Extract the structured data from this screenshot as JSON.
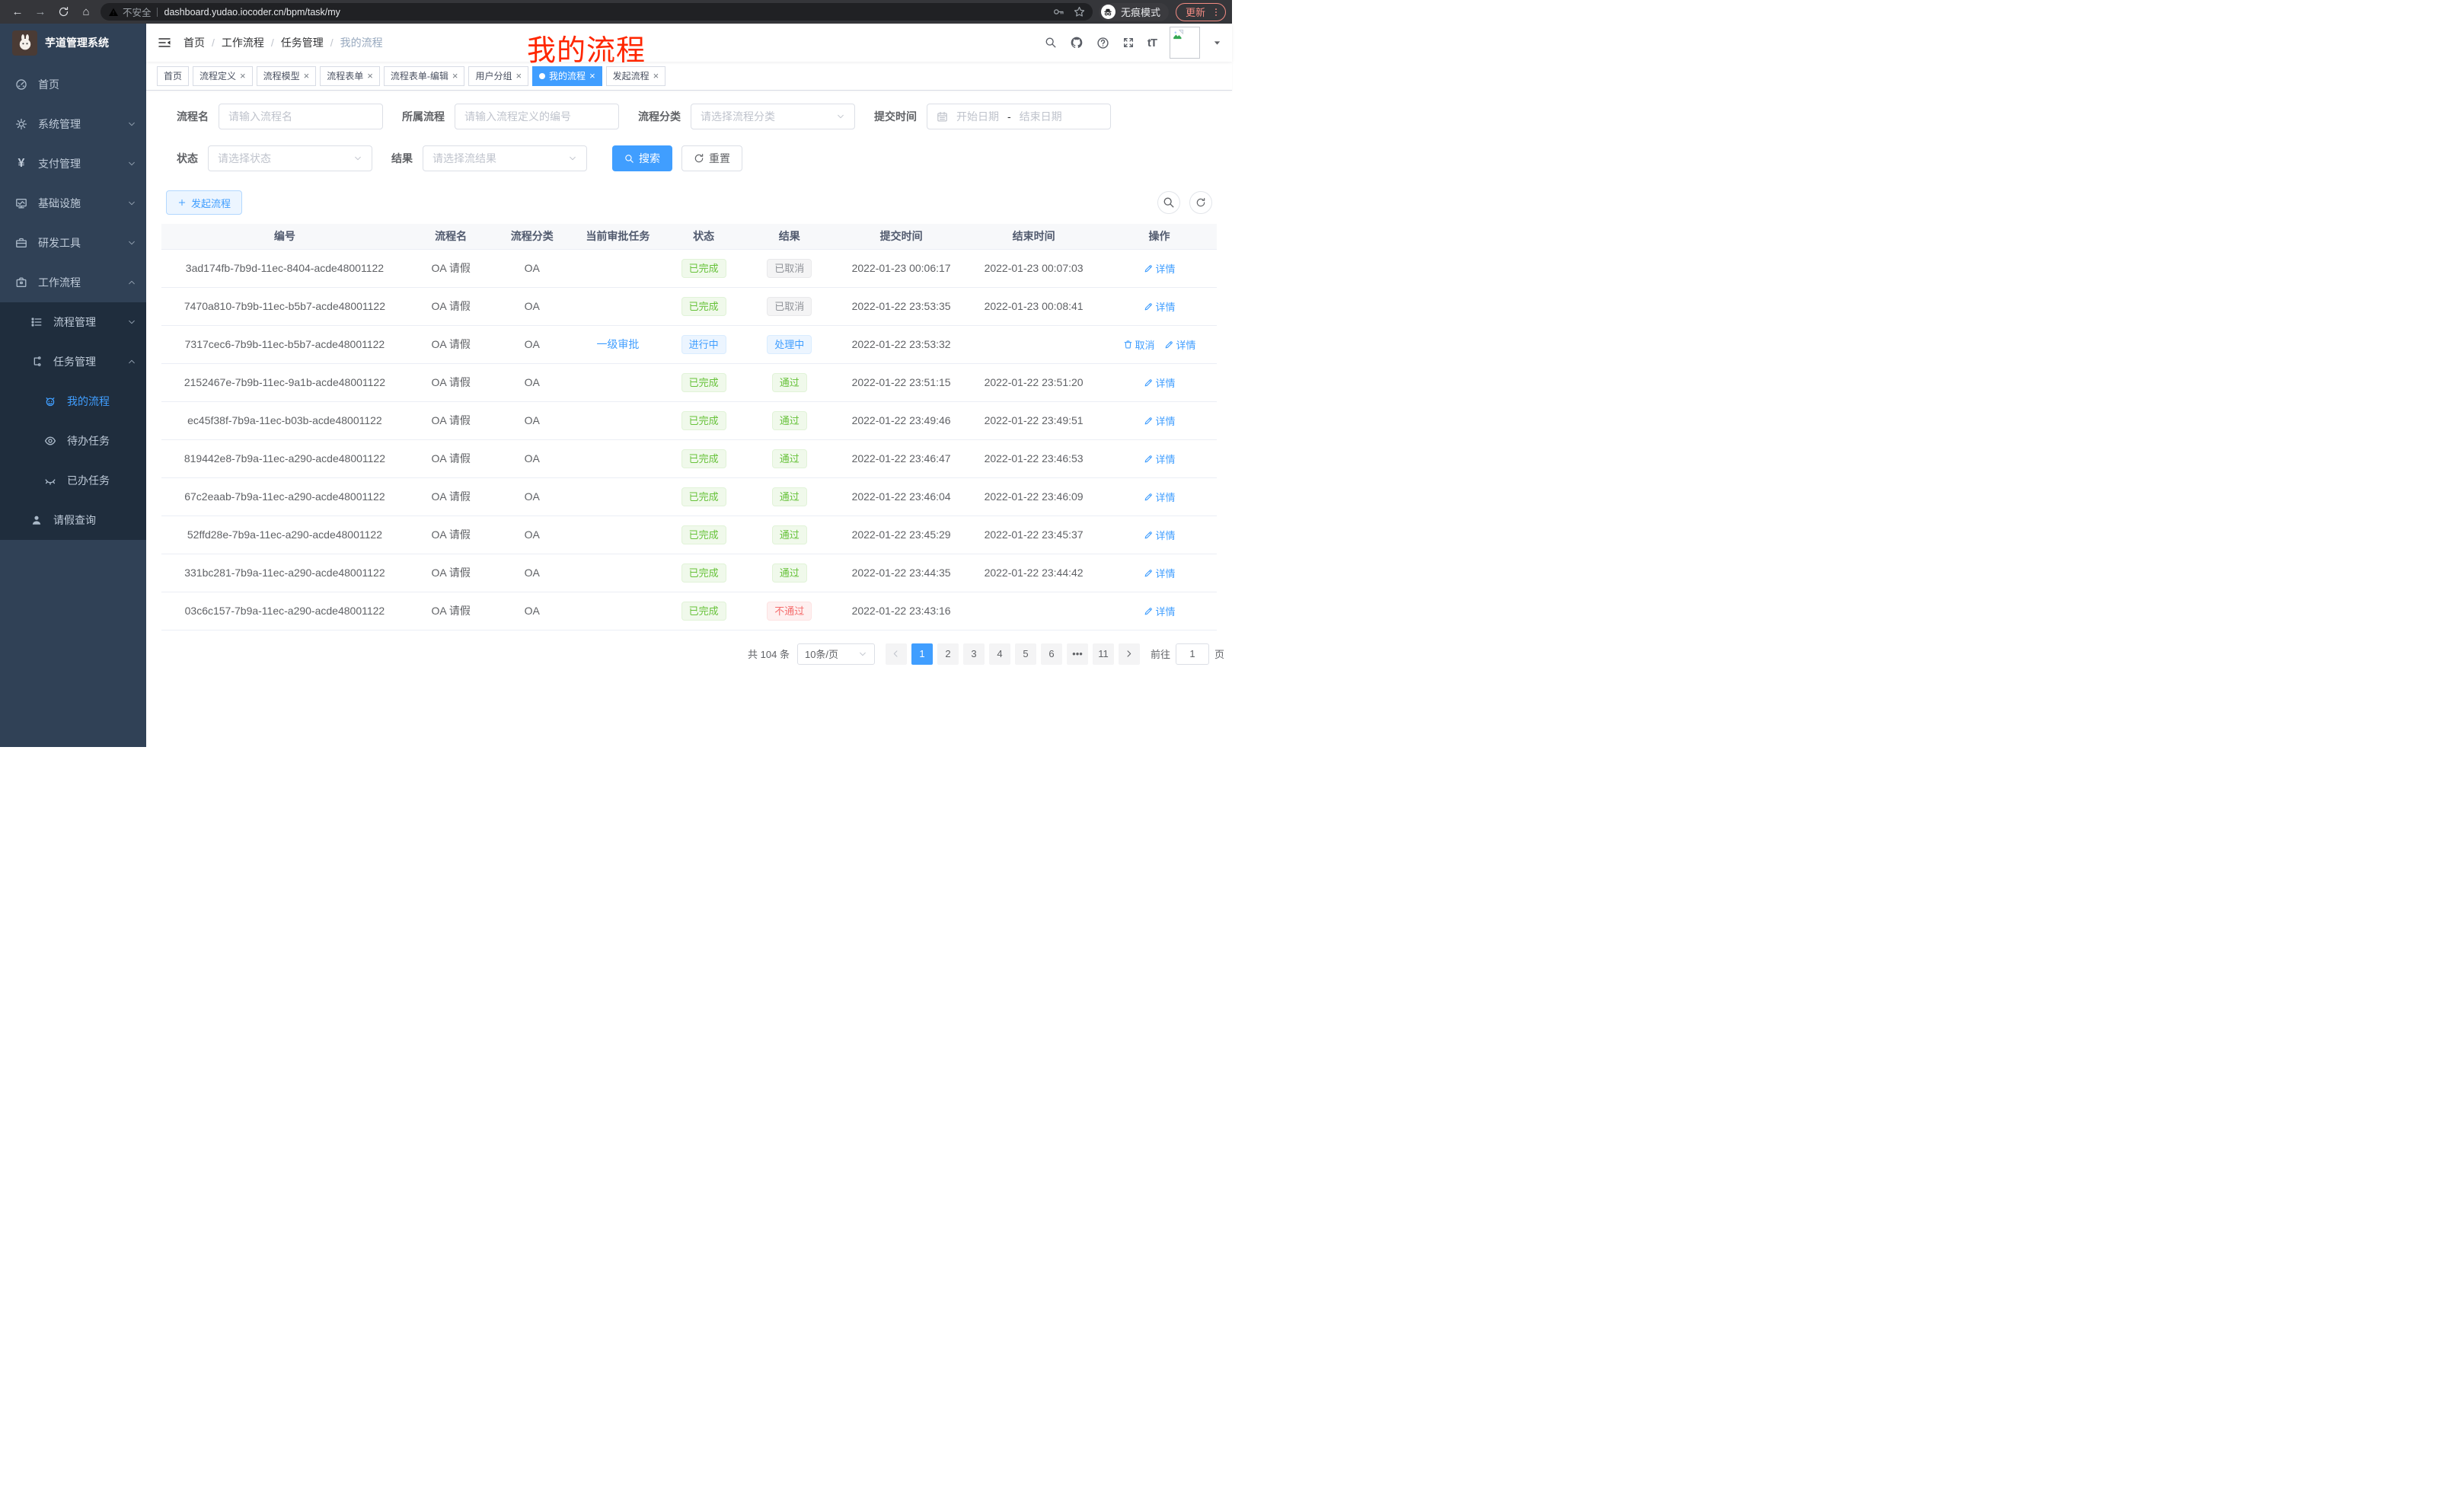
{
  "browser": {
    "security_label": "不安全",
    "url": "dashboard.yudao.iocoder.cn/bpm/task/my",
    "incognito_label": "无痕模式",
    "update_label": "更新"
  },
  "sidebar": {
    "title": "芋道管理系统",
    "items": [
      {
        "key": "home",
        "label": "首页",
        "icon": "dashboard-icon",
        "level": 1,
        "chevron": "",
        "active": false,
        "dark": false
      },
      {
        "key": "system",
        "label": "系统管理",
        "icon": "gear-icon",
        "level": 1,
        "chevron": "down",
        "active": false,
        "dark": false
      },
      {
        "key": "payment",
        "label": "支付管理",
        "icon": "yen-icon",
        "level": 1,
        "chevron": "down",
        "active": false,
        "dark": false
      },
      {
        "key": "infra",
        "label": "基础设施",
        "icon": "monitor-icon",
        "level": 1,
        "chevron": "down",
        "active": false,
        "dark": false
      },
      {
        "key": "devtools",
        "label": "研发工具",
        "icon": "toolbox-icon",
        "level": 1,
        "chevron": "down",
        "active": false,
        "dark": false
      },
      {
        "key": "workflow",
        "label": "工作流程",
        "icon": "briefcase-icon",
        "level": 1,
        "chevron": "up",
        "active": false,
        "dark": false
      },
      {
        "key": "process-mgmt",
        "label": "流程管理",
        "icon": "list-icon",
        "level": 2,
        "chevron": "down",
        "active": false,
        "dark": true
      },
      {
        "key": "task-mgmt",
        "label": "任务管理",
        "icon": "tree-icon",
        "level": 2,
        "chevron": "up",
        "active": false,
        "dark": true
      },
      {
        "key": "my-process",
        "label": "我的流程",
        "icon": "robot-icon",
        "level": 3,
        "chevron": "",
        "active": true,
        "dark": true
      },
      {
        "key": "todo-tasks",
        "label": "待办任务",
        "icon": "eye-open-icon",
        "level": 3,
        "chevron": "",
        "active": false,
        "dark": true
      },
      {
        "key": "done-tasks",
        "label": "已办任务",
        "icon": "eye-closed-icon",
        "level": 3,
        "chevron": "",
        "active": false,
        "dark": true
      },
      {
        "key": "leave-query",
        "label": "请假查询",
        "icon": "user-icon",
        "level": 2,
        "chevron": "",
        "active": false,
        "dark": true
      }
    ]
  },
  "header": {
    "breadcrumb": [
      "首页",
      "工作流程",
      "任务管理",
      "我的流程"
    ]
  },
  "annotation": {
    "text": "我的流程",
    "color": "#ff2600"
  },
  "tabs": [
    {
      "label": "首页",
      "closable": false,
      "active": false
    },
    {
      "label": "流程定义",
      "closable": true,
      "active": false
    },
    {
      "label": "流程模型",
      "closable": true,
      "active": false
    },
    {
      "label": "流程表单",
      "closable": true,
      "active": false
    },
    {
      "label": "流程表单-编辑",
      "closable": true,
      "active": false
    },
    {
      "label": "用户分组",
      "closable": true,
      "active": false
    },
    {
      "label": "我的流程",
      "closable": true,
      "active": true
    },
    {
      "label": "发起流程",
      "closable": true,
      "active": false
    }
  ],
  "filters": {
    "rows": [
      [
        {
          "key": "process-name",
          "label": "流程名",
          "type": "input",
          "placeholder": "请输入流程名"
        },
        {
          "key": "parent-process",
          "label": "所属流程",
          "type": "input",
          "placeholder": "请输入流程定义的编号"
        },
        {
          "key": "process-category",
          "label": "流程分类",
          "type": "select",
          "placeholder": "请选择流程分类"
        },
        {
          "key": "submit-time",
          "label": "提交时间",
          "type": "daterange",
          "start": "开始日期",
          "separator": "-",
          "end": "结束日期"
        }
      ],
      [
        {
          "key": "status",
          "label": "状态",
          "type": "select",
          "placeholder": "请选择状态"
        },
        {
          "key": "result",
          "label": "结果",
          "type": "select",
          "placeholder": "请选择流结果"
        }
      ]
    ],
    "search_label": "搜索",
    "reset_label": "重置"
  },
  "toolbar": {
    "create_label": "发起流程"
  },
  "table": {
    "headers": [
      "编号",
      "流程名",
      "流程分类",
      "当前审批任务",
      "状态",
      "结果",
      "提交时间",
      "结束时间",
      "操作"
    ],
    "rows": [
      {
        "id": "3ad174fb-7b9d-11ec-8404-acde48001122",
        "name": "OA 请假",
        "category": "OA",
        "task": "",
        "status_text": "已完成",
        "status_type": "success",
        "result_text": "已取消",
        "result_type": "info",
        "submitted": "2022-01-23 00:06:17",
        "finished": "2022-01-23 00:07:03",
        "actions": [
          {
            "label": "详情",
            "icon": "edit-icon"
          }
        ]
      },
      {
        "id": "7470a810-7b9b-11ec-b5b7-acde48001122",
        "name": "OA 请假",
        "category": "OA",
        "task": "",
        "status_text": "已完成",
        "status_type": "success",
        "result_text": "已取消",
        "result_type": "info",
        "submitted": "2022-01-22 23:53:35",
        "finished": "2022-01-23 00:08:41",
        "actions": [
          {
            "label": "详情",
            "icon": "edit-icon"
          }
        ]
      },
      {
        "id": "7317cec6-7b9b-11ec-b5b7-acde48001122",
        "name": "OA 请假",
        "category": "OA",
        "task": "一级审批",
        "status_text": "进行中",
        "status_type": "primary",
        "result_text": "处理中",
        "result_type": "primary",
        "submitted": "2022-01-22 23:53:32",
        "finished": "",
        "actions": [
          {
            "label": "取消",
            "icon": "trash-icon"
          },
          {
            "label": "详情",
            "icon": "edit-icon"
          }
        ]
      },
      {
        "id": "2152467e-7b9b-11ec-9a1b-acde48001122",
        "name": "OA 请假",
        "category": "OA",
        "task": "",
        "status_text": "已完成",
        "status_type": "success",
        "result_text": "通过",
        "result_type": "success",
        "submitted": "2022-01-22 23:51:15",
        "finished": "2022-01-22 23:51:20",
        "actions": [
          {
            "label": "详情",
            "icon": "edit-icon"
          }
        ]
      },
      {
        "id": "ec45f38f-7b9a-11ec-b03b-acde48001122",
        "name": "OA 请假",
        "category": "OA",
        "task": "",
        "status_text": "已完成",
        "status_type": "success",
        "result_text": "通过",
        "result_type": "success",
        "submitted": "2022-01-22 23:49:46",
        "finished": "2022-01-22 23:49:51",
        "actions": [
          {
            "label": "详情",
            "icon": "edit-icon"
          }
        ]
      },
      {
        "id": "819442e8-7b9a-11ec-a290-acde48001122",
        "name": "OA 请假",
        "category": "OA",
        "task": "",
        "status_text": "已完成",
        "status_type": "success",
        "result_text": "通过",
        "result_type": "success",
        "submitted": "2022-01-22 23:46:47",
        "finished": "2022-01-22 23:46:53",
        "actions": [
          {
            "label": "详情",
            "icon": "edit-icon"
          }
        ]
      },
      {
        "id": "67c2eaab-7b9a-11ec-a290-acde48001122",
        "name": "OA 请假",
        "category": "OA",
        "task": "",
        "status_text": "已完成",
        "status_type": "success",
        "result_text": "通过",
        "result_type": "success",
        "submitted": "2022-01-22 23:46:04",
        "finished": "2022-01-22 23:46:09",
        "actions": [
          {
            "label": "详情",
            "icon": "edit-icon"
          }
        ]
      },
      {
        "id": "52ffd28e-7b9a-11ec-a290-acde48001122",
        "name": "OA 请假",
        "category": "OA",
        "task": "",
        "status_text": "已完成",
        "status_type": "success",
        "result_text": "通过",
        "result_type": "success",
        "submitted": "2022-01-22 23:45:29",
        "finished": "2022-01-22 23:45:37",
        "actions": [
          {
            "label": "详情",
            "icon": "edit-icon"
          }
        ]
      },
      {
        "id": "331bc281-7b9a-11ec-a290-acde48001122",
        "name": "OA 请假",
        "category": "OA",
        "task": "",
        "status_text": "已完成",
        "status_type": "success",
        "result_text": "通过",
        "result_type": "success",
        "submitted": "2022-01-22 23:44:35",
        "finished": "2022-01-22 23:44:42",
        "actions": [
          {
            "label": "详情",
            "icon": "edit-icon"
          }
        ]
      },
      {
        "id": "03c6c157-7b9a-11ec-a290-acde48001122",
        "name": "OA 请假",
        "category": "OA",
        "task": "",
        "status_text": "已完成",
        "status_type": "success",
        "result_text": "不通过",
        "result_type": "danger",
        "submitted": "2022-01-22 23:43:16",
        "finished": "",
        "actions": [
          {
            "label": "详情",
            "icon": "edit-icon"
          }
        ]
      }
    ]
  },
  "pagination": {
    "total": "共 104 条",
    "page_size": "10条/页",
    "pages": [
      {
        "label": "1",
        "active": true
      },
      {
        "label": "2",
        "active": false
      },
      {
        "label": "3",
        "active": false
      },
      {
        "label": "4",
        "active": false
      },
      {
        "label": "5",
        "active": false
      },
      {
        "label": "6",
        "active": false
      },
      {
        "label": "•••",
        "active": false
      },
      {
        "label": "11",
        "active": false
      }
    ],
    "jump_prefix": "前往",
    "jump_value": "1",
    "jump_suffix": "页"
  },
  "colors": {
    "accent": "#409eff",
    "success": "#67c23a",
    "info": "#909399",
    "danger": "#f56c6c",
    "annotation": "#ff2600",
    "sidebar_bg": "#304156",
    "submenu_bg": "#1f2d3d",
    "active_tag_bg": "#409eff"
  }
}
